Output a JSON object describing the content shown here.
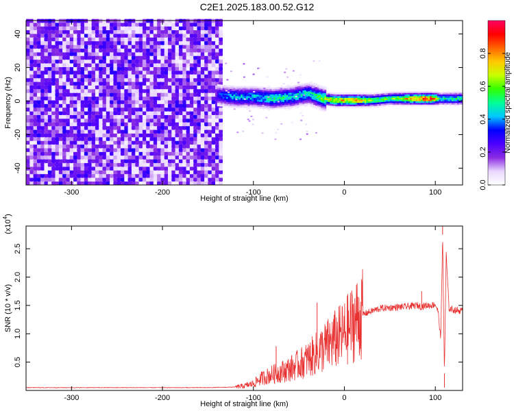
{
  "title": "C2E1.2025.183.00.52.G12",
  "chart_data": [
    {
      "type": "heatmap",
      "xlabel": "Height of straight line (km)",
      "ylabel": "Frequency (Hz)",
      "xlim": [
        -350,
        130
      ],
      "ylim": [
        -50,
        48
      ],
      "x_ticks": [
        -300,
        -200,
        -100,
        0,
        100
      ],
      "y_ticks": [
        -40,
        -20,
        0,
        20,
        40
      ],
      "x_tick_labels": [
        "-300",
        "-200",
        "-100",
        "0",
        "100"
      ],
      "y_tick_labels": [
        "-40",
        "-20",
        "0",
        "20",
        "40"
      ],
      "noise_region_x": [
        -350,
        -137
      ],
      "signal_band_profile": [
        {
          "x": -140,
          "y": 3,
          "amplitude": 0.35
        },
        {
          "x": -120,
          "y": 2,
          "amplitude": 0.45
        },
        {
          "x": -100,
          "y": 2,
          "amplitude": 0.45
        },
        {
          "x": -80,
          "y": 1,
          "amplitude": 0.5
        },
        {
          "x": -60,
          "y": 2,
          "amplitude": 0.5
        },
        {
          "x": -40,
          "y": 4,
          "amplitude": 0.5
        },
        {
          "x": -25,
          "y": 1,
          "amplitude": 0.6
        },
        {
          "x": -10,
          "y": 0,
          "amplitude": 0.8
        },
        {
          "x": 0,
          "y": 0,
          "amplitude": 0.8
        },
        {
          "x": 10,
          "y": 0,
          "amplitude": 0.85
        },
        {
          "x": 30,
          "y": 0,
          "amplitude": 0.6
        },
        {
          "x": 50,
          "y": 1,
          "amplitude": 0.6
        },
        {
          "x": 75,
          "y": 1,
          "amplitude": 0.85
        },
        {
          "x": 95,
          "y": 1,
          "amplitude": 0.95
        },
        {
          "x": 105,
          "y": 1,
          "amplitude": 0.5
        },
        {
          "x": 115,
          "y": 1,
          "amplitude": 0.55
        },
        {
          "x": 130,
          "y": 1,
          "amplitude": 0.55
        }
      ],
      "colorbar": {
        "label": "Normalized spectral amplitude",
        "range": [
          0,
          1
        ],
        "ticks": [
          0.0,
          0.2,
          0.4,
          0.6,
          0.8
        ],
        "tick_labels": [
          "0.0",
          "0.2",
          "0.4",
          "0.6",
          "0.8"
        ],
        "colors": [
          "#ffffff",
          "#ead7ff",
          "#8a2be2",
          "#4b00ff",
          "#0000ff",
          "#00c8ff",
          "#00ff96",
          "#32ff00",
          "#c8ff00",
          "#ffc800",
          "#ff6400",
          "#ff0000",
          "#ff0064"
        ]
      }
    },
    {
      "type": "line",
      "xlabel": "Height of straight line (km)",
      "ylabel": "SNR (10 * v/v)",
      "y_multiplier": "(x10",
      "y_multiplier_exp": "4",
      "y_multiplier_close": ")",
      "xlim": [
        -350,
        130
      ],
      "ylim": [
        0,
        2.9
      ],
      "x_ticks": [
        -300,
        -200,
        -100,
        0,
        100
      ],
      "y_ticks": [
        0.5,
        1.0,
        1.5,
        2.0,
        2.5
      ],
      "x_tick_labels": [
        "-300",
        "-200",
        "-100",
        "0",
        "100"
      ],
      "y_tick_labels": [
        "0.5",
        "1.0",
        "1.5",
        "2.0",
        "2.5"
      ],
      "color": "#e83030",
      "series": [
        {
          "x": [
            -350,
            -300,
            -250,
            -200,
            -150,
            -120,
            -110,
            -100,
            -95,
            -90,
            -85,
            -80,
            -75,
            -70,
            -65,
            -60,
            -55,
            -50,
            -45,
            -40,
            -35,
            -30,
            -25,
            -20,
            -15,
            -10,
            -5,
            0,
            5,
            10,
            15,
            20,
            30,
            40,
            50,
            60,
            70,
            80,
            85,
            90,
            95,
            100,
            103,
            106,
            108,
            110,
            112,
            115,
            120,
            130
          ],
          "y": [
            0.05,
            0.05,
            0.05,
            0.05,
            0.05,
            0.06,
            0.08,
            0.12,
            0.18,
            0.22,
            0.25,
            0.28,
            0.3,
            0.33,
            0.35,
            0.38,
            0.42,
            0.46,
            0.5,
            0.55,
            0.6,
            0.66,
            0.72,
            0.78,
            0.84,
            0.9,
            0.95,
            1.0,
            1.1,
            1.2,
            1.28,
            1.34,
            1.4,
            1.45,
            1.46,
            1.47,
            1.48,
            1.5,
            1.48,
            1.5,
            1.5,
            1.52,
            1.4,
            0.9,
            2.75,
            0.3,
            2.4,
            1.45,
            1.42,
            1.4
          ]
        }
      ],
      "spikes": [
        {
          "x": -75,
          "y": 0.78
        },
        {
          "x": -30,
          "y": 1.55
        },
        {
          "x": 85,
          "y": 1.75
        },
        {
          "x": 108,
          "y": 2.9
        },
        {
          "x": 110,
          "y": 0.05
        }
      ]
    }
  ]
}
